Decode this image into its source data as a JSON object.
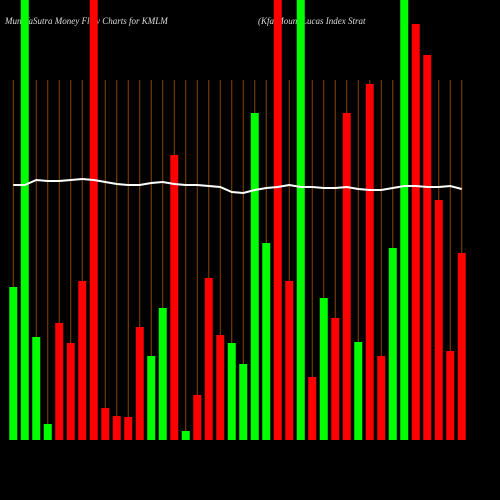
{
  "chart_data": {
    "type": "bar",
    "title": "MunafaSutra  Money Flow  Charts for KMLM",
    "subtitle": "(Kfa Mount Lucas Index Strat",
    "categories": [
      null,
      null,
      null,
      null,
      null,
      null,
      null,
      null,
      null,
      null,
      null,
      null,
      null,
      null,
      null,
      null,
      null,
      null,
      null,
      null,
      null,
      null,
      null,
      null,
      null,
      null,
      null,
      null,
      null,
      null,
      null,
      null,
      null,
      null,
      null,
      null,
      null,
      null,
      null,
      null
    ],
    "values": [
      153,
      440,
      103,
      16,
      117,
      97,
      159,
      440,
      32,
      24,
      23,
      113,
      84,
      132,
      285,
      9,
      45,
      162,
      105,
      97,
      76,
      327,
      197,
      440,
      159,
      440,
      63,
      142,
      122,
      327,
      98,
      356,
      84,
      192,
      440,
      416,
      385,
      240,
      89,
      187
    ],
    "colors": [
      "#00ff00",
      "#00ff00",
      "#00ff00",
      "#00ff00",
      "#ff0000",
      "#ff0000",
      "#ff0000",
      "#ff0000",
      "#ff0000",
      "#ff0000",
      "#ff0000",
      "#ff0000",
      "#00ff00",
      "#00ff00",
      "#ff0000",
      "#00ff00",
      "#ff0000",
      "#ff0000",
      "#ff0000",
      "#00ff00",
      "#00ff00",
      "#00ff00",
      "#00ff00",
      "#ff0000",
      "#ff0000",
      "#00ff00",
      "#ff0000",
      "#00ff00",
      "#ff0000",
      "#ff0000",
      "#00ff00",
      "#ff0000",
      "#ff0000",
      "#00ff00",
      "#00ff00",
      "#ff0000",
      "#ff0000",
      "#ff0000",
      "#ff0000",
      "#ff0000"
    ],
    "line_values": [
      255,
      255,
      260,
      259,
      259,
      260,
      261,
      260,
      258,
      256,
      255,
      255,
      257,
      258,
      256,
      255,
      255,
      254,
      253,
      248,
      247,
      250,
      252,
      253,
      255,
      253,
      253,
      252,
      252,
      253,
      251,
      250,
      250,
      252,
      254,
      254,
      253,
      253,
      254,
      251
    ],
    "line_color": "#ffffff",
    "ylim": [
      0,
      440
    ],
    "grid": true,
    "grid_color": "#8b4500"
  }
}
